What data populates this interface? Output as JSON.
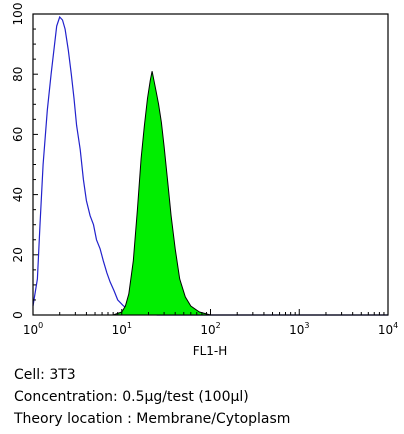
{
  "chart_data": {
    "type": "area",
    "title": "",
    "xlabel": "FL1-H",
    "ylabel": "",
    "xscale": "log",
    "xlim": [
      1,
      10000
    ],
    "ylim": [
      0,
      100
    ],
    "x_tick_labels": [
      {
        "base": "10",
        "exp": "0",
        "value": 1
      },
      {
        "base": "10",
        "exp": "1",
        "value": 10
      },
      {
        "base": "10",
        "exp": "2",
        "value": 100
      },
      {
        "base": "10",
        "exp": "3",
        "value": 1000
      },
      {
        "base": "10",
        "exp": "4",
        "value": 10000
      }
    ],
    "y_ticks": [
      0,
      20,
      40,
      60,
      80,
      100
    ],
    "y_tick_labels": [
      "0",
      "20",
      "40",
      "60",
      "80",
      "100"
    ],
    "grid": false,
    "series": [
      {
        "style": "outline",
        "color": "#2222cc",
        "points": [
          [
            1.0,
            3
          ],
          [
            1.12,
            12
          ],
          [
            1.2,
            30
          ],
          [
            1.3,
            50
          ],
          [
            1.45,
            68
          ],
          [
            1.6,
            80
          ],
          [
            1.75,
            90
          ],
          [
            1.85,
            96
          ],
          [
            2.0,
            99
          ],
          [
            2.15,
            98
          ],
          [
            2.3,
            95
          ],
          [
            2.5,
            88
          ],
          [
            2.7,
            80
          ],
          [
            2.9,
            72
          ],
          [
            3.1,
            63
          ],
          [
            3.4,
            55
          ],
          [
            3.7,
            45
          ],
          [
            4.0,
            38
          ],
          [
            4.4,
            33
          ],
          [
            4.8,
            30
          ],
          [
            5.2,
            25
          ],
          [
            5.7,
            22
          ],
          [
            6.2,
            18
          ],
          [
            6.8,
            14
          ],
          [
            7.4,
            11
          ],
          [
            8.2,
            8
          ],
          [
            9.0,
            5
          ],
          [
            10.5,
            3
          ],
          [
            12.5,
            2
          ],
          [
            15,
            1
          ],
          [
            25,
            0
          ],
          [
            100,
            0
          ],
          [
            1000,
            0
          ],
          [
            10000,
            0
          ]
        ]
      },
      {
        "style": "filled",
        "color": "#00ee00",
        "points": [
          [
            1.0,
            0
          ],
          [
            5,
            0
          ],
          [
            8,
            0
          ],
          [
            10,
            1
          ],
          [
            11,
            3
          ],
          [
            12,
            7
          ],
          [
            13.5,
            18
          ],
          [
            15,
            35
          ],
          [
            16.5,
            52
          ],
          [
            18,
            63
          ],
          [
            19.5,
            72
          ],
          [
            21,
            78
          ],
          [
            22,
            81
          ],
          [
            23,
            78
          ],
          [
            24.5,
            74
          ],
          [
            26,
            70
          ],
          [
            28,
            64
          ],
          [
            30,
            56
          ],
          [
            33,
            44
          ],
          [
            36,
            33
          ],
          [
            40,
            22
          ],
          [
            45,
            12
          ],
          [
            52,
            6
          ],
          [
            60,
            3
          ],
          [
            75,
            1
          ],
          [
            100,
            0
          ],
          [
            1000,
            0
          ],
          [
            10000,
            0
          ]
        ]
      }
    ]
  },
  "caption": {
    "cell": "Cell: 3T3",
    "concentration": "Concentration: 0.5µg/test (100µl)",
    "location": "Theory location : Membrane/Cytoplasm"
  }
}
